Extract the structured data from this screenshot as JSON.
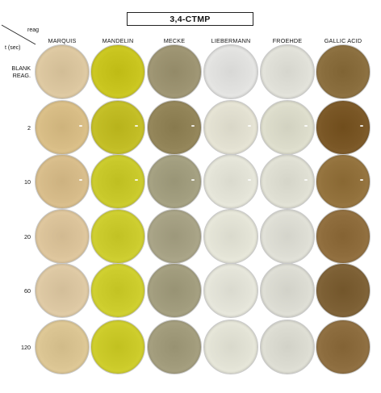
{
  "title": "3,4-CTMP",
  "corner": {
    "reagent_label": "reag",
    "time_label": "t (sec)"
  },
  "columns": [
    {
      "label": "MARQUIS"
    },
    {
      "label": "MANDELIN"
    },
    {
      "label": "MECKE"
    },
    {
      "label": "LIEBERMANN"
    },
    {
      "label": "FROEHDE"
    },
    {
      "label": "GALLIC ACID"
    }
  ],
  "rows": [
    {
      "label_line1": "BLANK",
      "label_line2": "REAG."
    },
    {
      "label_line1": "2",
      "label_line2": ""
    },
    {
      "label_line1": "10",
      "label_line2": ""
    },
    {
      "label_line1": "20",
      "label_line2": ""
    },
    {
      "label_line1": "60",
      "label_line2": ""
    },
    {
      "label_line1": "120",
      "label_line2": ""
    }
  ],
  "well_colors": {
    "MARQUIS": [
      "#dcc7a0",
      "#d8bd86",
      "#d7bc8a",
      "#dcc49b",
      "#ddc8a3",
      "#dbc593"
    ],
    "MANDELIN": [
      "#c9c51f",
      "#c2bd25",
      "#c9c92b",
      "#cccc2e",
      "#cdcd2d",
      "#cccb2a"
    ],
    "MECKE": [
      "#9d9472",
      "#928458",
      "#a39f80",
      "#a7a285",
      "#a29d7e",
      "#a29c7c"
    ],
    "LIEBERMANN": [
      "#e2e2e0",
      "#e3e1d2",
      "#e4e4d8",
      "#e4e4d7",
      "#e4e4d9",
      "#e3e3d6"
    ],
    "FROEHDE": [
      "#e0e0d8",
      "#dcdccb",
      "#dfdfd3",
      "#dedeD5",
      "#dcdcd3",
      "#dcdcd2"
    ],
    "GALLIC ACID": [
      "#8a6e3e",
      "#7a5726",
      "#93723d",
      "#8f6d3d",
      "#7d6035",
      "#8d6d3f"
    ]
  }
}
